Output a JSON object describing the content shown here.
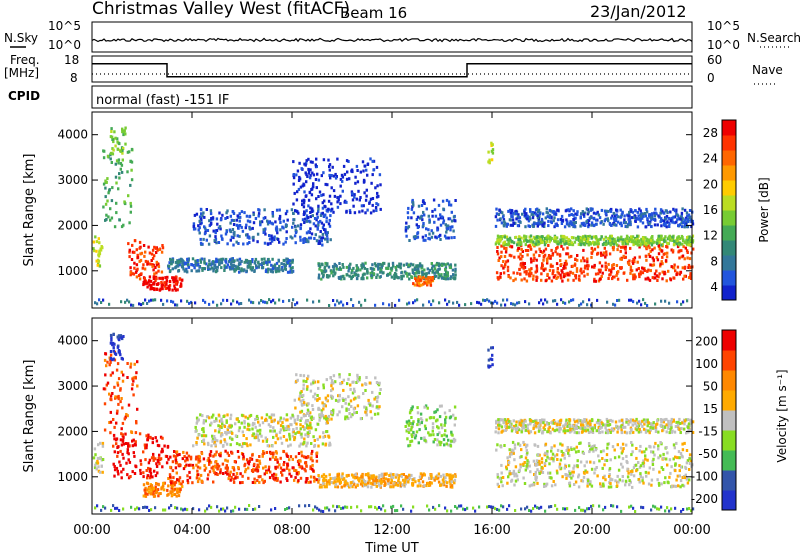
{
  "header": {
    "station": "Christmas Valley West (fitACF)",
    "beam": "Beam 16",
    "date": "23/Jan/2012"
  },
  "colors": {
    "power": [
      "#1122cc",
      "#2255dd",
      "#33779a",
      "#338877",
      "#44aa55",
      "#77cc33",
      "#bbdd22",
      "#ffcc00",
      "#ff9900",
      "#ff6600",
      "#ff3300",
      "#ee0000"
    ],
    "velocity": [
      "#2233cc",
      "#3355aa",
      "#44bb55",
      "#88dd22",
      "#c0c0c0",
      "#ffaa00",
      "#ff8800",
      "#ff4400",
      "#ee0000"
    ]
  },
  "chart_data": [
    {
      "type": "line",
      "panel": "noise",
      "left_label": "N.Sky",
      "right_label": "N.Search",
      "left_ticks": [
        "10^5",
        "10^0"
      ],
      "right_ticks": [
        "10^5",
        "10^0"
      ]
    },
    {
      "type": "line",
      "panel": "frequency",
      "left_label": [
        "Freq.",
        "[MHz]"
      ],
      "right_label": "Nave",
      "left_ticks": [
        "18",
        "8"
      ],
      "right_ticks": [
        "60",
        "0"
      ],
      "x": [
        0,
        3.0,
        3.0,
        15.0,
        15.0,
        24
      ],
      "freq_mhz": [
        15,
        15,
        10,
        10,
        15,
        15
      ]
    },
    {
      "type": "table",
      "panel": "cpid",
      "label": "CPID",
      "text": "normal (fast) -151 IF"
    },
    {
      "type": "heatmap",
      "panel": "power",
      "ylabel": "Slant Range [km]",
      "colorbar_label": "Power [dB]",
      "colorbar_ticks": [
        "28",
        "24",
        "20",
        "16",
        "12",
        "8",
        "4"
      ],
      "yticks": [
        "4000",
        "3000",
        "2000",
        "1000"
      ],
      "ylim": [
        180,
        4500
      ],
      "xlim": [
        0,
        24
      ],
      "bands": [
        {
          "t0": 0.0,
          "t1": 0.4,
          "r0": 1100,
          "r1": 1800,
          "level": 6
        },
        {
          "t0": 0.4,
          "t1": 1.6,
          "r0": 2000,
          "r1": 3800,
          "level": 4
        },
        {
          "t0": 0.7,
          "t1": 1.3,
          "r0": 3600,
          "r1": 4200,
          "level": 5
        },
        {
          "t0": 1.4,
          "t1": 2.8,
          "r0": 850,
          "r1": 1700,
          "level": 10
        },
        {
          "t0": 2.0,
          "t1": 3.6,
          "r0": 600,
          "r1": 900,
          "level": 11
        },
        {
          "t0": 3.0,
          "t1": 8.0,
          "r0": 1000,
          "r1": 1300,
          "level": 2
        },
        {
          "t0": 4.0,
          "t1": 9.5,
          "r0": 1600,
          "r1": 2400,
          "level": 1
        },
        {
          "t0": 8.0,
          "t1": 11.5,
          "r0": 2300,
          "r1": 3500,
          "level": 0
        },
        {
          "t0": 9.0,
          "t1": 14.5,
          "r0": 850,
          "r1": 1200,
          "level": 3
        },
        {
          "t0": 12.5,
          "t1": 14.5,
          "r0": 1700,
          "r1": 2600,
          "level": 1
        },
        {
          "t0": 12.8,
          "t1": 13.6,
          "r0": 700,
          "r1": 900,
          "level": 9
        },
        {
          "t0": 15.8,
          "t1": 16.0,
          "r0": 3400,
          "r1": 3900,
          "level": 6
        },
        {
          "t0": 16.1,
          "t1": 24.0,
          "r0": 800,
          "r1": 1600,
          "level": 10
        },
        {
          "t0": 16.1,
          "t1": 24.0,
          "r0": 1600,
          "r1": 1800,
          "level": 5
        },
        {
          "t0": 16.1,
          "t1": 24.0,
          "r0": 2000,
          "r1": 2400,
          "level": 1
        }
      ]
    },
    {
      "type": "heatmap",
      "panel": "velocity",
      "ylabel": "Slant Range [km]",
      "colorbar_label": "Velocity [m s⁻¹]",
      "colorbar_ticks": [
        "200",
        "100",
        "50",
        "15",
        "-15",
        "-50",
        "-100",
        "-200"
      ],
      "yticks": [
        "4000",
        "3000",
        "2000",
        "1000"
      ],
      "ylim": [
        180,
        4500
      ],
      "xlim": [
        0,
        24
      ],
      "bands": [
        {
          "t0": 0.0,
          "t1": 0.4,
          "r0": 1100,
          "r1": 1800,
          "level": 4
        },
        {
          "t0": 0.4,
          "t1": 1.8,
          "r0": 2000,
          "r1": 3800,
          "level": 7
        },
        {
          "t0": 0.7,
          "t1": 1.3,
          "r0": 3600,
          "r1": 4200,
          "level": 0
        },
        {
          "t0": 0.8,
          "t1": 3.0,
          "r0": 1000,
          "r1": 2000,
          "level": 8
        },
        {
          "t0": 2.0,
          "t1": 3.6,
          "r0": 600,
          "r1": 900,
          "level": 6
        },
        {
          "t0": 3.0,
          "t1": 9.0,
          "r0": 900,
          "r1": 1600,
          "level": 7
        },
        {
          "t0": 4.0,
          "t1": 9.5,
          "r0": 1700,
          "r1": 2400,
          "level": 4
        },
        {
          "t0": 8.0,
          "t1": 11.5,
          "r0": 2300,
          "r1": 3300,
          "level": 4
        },
        {
          "t0": 9.0,
          "t1": 14.5,
          "r0": 800,
          "r1": 1100,
          "level": 5
        },
        {
          "t0": 12.5,
          "t1": 14.5,
          "r0": 1700,
          "r1": 2600,
          "level": 3
        },
        {
          "t0": 15.8,
          "t1": 16.0,
          "r0": 3400,
          "r1": 3900,
          "level": 0
        },
        {
          "t0": 16.1,
          "t1": 24.0,
          "r0": 800,
          "r1": 1800,
          "level": 4
        },
        {
          "t0": 16.1,
          "t1": 24.0,
          "r0": 2000,
          "r1": 2300,
          "level": 4
        }
      ]
    }
  ],
  "time_axis": {
    "label": "Time UT",
    "ticks": [
      "00:00",
      "04:00",
      "08:00",
      "12:00",
      "16:00",
      "20:00",
      "00:00"
    ],
    "tick_hours": [
      0,
      4,
      8,
      12,
      16,
      20,
      24
    ]
  }
}
